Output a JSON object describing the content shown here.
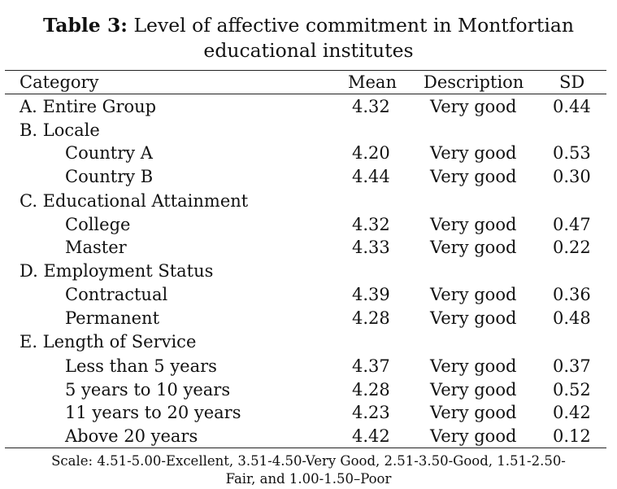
{
  "title": {
    "label": "Table 3:",
    "line1": "Level of affective commitment in Montfortian",
    "line2": "educational institutes"
  },
  "header": {
    "category": "Category",
    "mean": "Mean",
    "description": "Description",
    "sd": "SD"
  },
  "rows": [
    {
      "category": "A. Entire Group",
      "mean": "4.32",
      "description": "Very good",
      "sd": "0.44"
    },
    {
      "category": "B. Locale",
      "mean": "",
      "description": "",
      "sd": ""
    },
    {
      "category": "Country A",
      "mean": "4.20",
      "description": "Very good",
      "sd": "0.53"
    },
    {
      "category": "Country B",
      "mean": "4.44",
      "description": "Very good",
      "sd": "0.30"
    },
    {
      "category": "C. Educational Attainment",
      "mean": "",
      "description": "",
      "sd": ""
    },
    {
      "category": "College",
      "mean": "4.32",
      "description": "Very good",
      "sd": "0.47"
    },
    {
      "category": "Master",
      "mean": "4.33",
      "description": "Very good",
      "sd": "0.22"
    },
    {
      "category": "D. Employment Status",
      "mean": "",
      "description": "",
      "sd": ""
    },
    {
      "category": "Contractual",
      "mean": "4.39",
      "description": "Very good",
      "sd": "0.36"
    },
    {
      "category": "Permanent",
      "mean": "4.28",
      "description": "Very good",
      "sd": "0.48"
    },
    {
      "category": "E. Length of Service",
      "mean": "",
      "description": "",
      "sd": ""
    },
    {
      "category": "Less than 5 years",
      "mean": "4.37",
      "description": "Very good",
      "sd": "0.37"
    },
    {
      "category": "5 years to 10 years",
      "mean": "4.28",
      "description": "Very good",
      "sd": "0.52"
    },
    {
      "category": "11 years to 20 years",
      "mean": "4.23",
      "description": "Very good",
      "sd": "0.42"
    },
    {
      "category": "Above 20 years",
      "mean": "4.42",
      "description": "Very good",
      "sd": "0.12"
    }
  ],
  "note": {
    "line1": "Scale: 4.51-5.00-Excellent, 3.51-4.50-Very Good, 2.51-3.50-Good, 1.51-2.50-",
    "line2": "Fair, and 1.00-1.50–Poor"
  }
}
